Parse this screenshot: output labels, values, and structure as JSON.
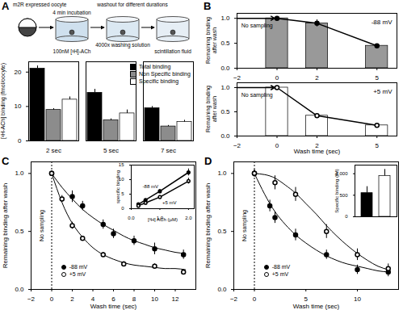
{
  "chart_data": [
    {
      "panel": "A",
      "type": "bar",
      "annotations": [
        "m2R expressed oocyte",
        "4 min incubation",
        "washout for different durations",
        "100nM [³H]-ACh",
        "4000x washing solution",
        "scintillation fluid"
      ],
      "ylabel": "[³H-ACh] binding (fmol/oocyte)",
      "categories": [
        "2 sec",
        "5 sec",
        "7 sec"
      ],
      "series": [
        {
          "name": "Total binding",
          "color": "#000000",
          "values": [
            21,
            14,
            9.5
          ],
          "errors": [
            0.8,
            1,
            0.5
          ]
        },
        {
          "name": "Non Specific binding",
          "color": "#8c8c8c",
          "values": [
            9,
            6,
            4.2
          ],
          "errors": [
            0.4,
            0.4,
            0.3
          ]
        },
        {
          "name": "Specific binding",
          "color": "#ffffff",
          "values": [
            12,
            8,
            5.5
          ],
          "errors": [
            0.8,
            1,
            0.5
          ]
        }
      ],
      "ylim": [
        0,
        23
      ],
      "yticks": [
        0,
        10,
        20
      ],
      "legend": "top-right"
    },
    {
      "panel": "B",
      "type": "bar",
      "title": "-88 mV",
      "annotations": [
        "No sampling"
      ],
      "ylabel": "Remaining binding after wash",
      "x": [
        0,
        2,
        5
      ],
      "values": [
        1,
        0.9,
        0.45
      ],
      "errors": [
        0.02,
        0.07,
        0.03
      ],
      "color": "#999999",
      "marker": "circle",
      "xlim": [
        -2,
        6
      ],
      "xticks": [
        -2,
        0,
        2,
        5
      ],
      "ylim": [
        0,
        1.1
      ],
      "yticks": [
        0,
        0.5,
        1
      ]
    },
    {
      "type": "bar",
      "title": "+5 mV",
      "annotations": [
        "No sampling"
      ],
      "xlabel": "Wash time (sec)",
      "ylabel": "Remaining binding after wash",
      "x": [
        0,
        2,
        5
      ],
      "values": [
        1,
        0.42,
        0.22
      ],
      "errors": [
        0.02,
        0.03,
        0.03
      ],
      "color": "#ffffff",
      "marker": "open circle",
      "xlim": [
        -2,
        6
      ],
      "xticks": [
        -2,
        0,
        2,
        5
      ],
      "ylim": [
        0,
        1.1
      ],
      "yticks": [
        0,
        0.5,
        1
      ]
    },
    {
      "panel": "C",
      "type": "scatter",
      "annotations": [
        "No sampling"
      ],
      "xlabel": "Wash time (sec)",
      "ylabel": "Remaining binding after wash",
      "series": [
        {
          "name": "-88 mV",
          "color": "#000000",
          "marker": "filled circle",
          "x": [
            0,
            2,
            3,
            5,
            6,
            8,
            10,
            12.8
          ],
          "values": [
            1,
            0.8,
            0.72,
            0.56,
            0.48,
            0.42,
            0.35,
            0.3
          ],
          "errors": [
            0.02,
            0.05,
            0.04,
            0.04,
            0.04,
            0.04,
            0.05,
            0.04
          ],
          "fit_x": [
            0,
            1,
            2,
            3,
            4,
            5,
            6,
            7,
            8,
            9,
            10,
            11,
            12,
            13
          ],
          "fit": [
            1,
            0.88,
            0.78,
            0.69,
            0.62,
            0.56,
            0.51,
            0.46,
            0.42,
            0.39,
            0.36,
            0.34,
            0.32,
            0.31
          ]
        },
        {
          "name": "+5 mV",
          "color": "#000000",
          "marker": "open circle",
          "x": [
            0,
            1,
            2,
            3,
            5,
            7,
            10,
            12.8
          ],
          "values": [
            1,
            0.78,
            0.55,
            0.44,
            0.3,
            0.22,
            0.2,
            0.15
          ],
          "errors": [
            0.02,
            0.03,
            0.03,
            0.02,
            0.02,
            0.02,
            0.02,
            0.02
          ],
          "fit_x": [
            0,
            1,
            2,
            3,
            4,
            5,
            6,
            7,
            8,
            9,
            10,
            11,
            12,
            13
          ],
          "fit": [
            1,
            0.75,
            0.57,
            0.45,
            0.36,
            0.3,
            0.26,
            0.23,
            0.21,
            0.2,
            0.19,
            0.18,
            0.18,
            0.17
          ]
        }
      ],
      "xlim": [
        -2,
        14
      ],
      "xticks": [
        -2,
        0,
        2,
        4,
        6,
        8,
        10,
        12
      ],
      "ylim": [
        0,
        1.1
      ],
      "yticks": [
        0,
        0.5,
        1
      ],
      "legend": "bottom-left"
    },
    {
      "type": "line",
      "xlabel": "[³H] ACh (µM)",
      "ylabel": "specific binding",
      "series": [
        {
          "name": "-88 mV",
          "color": "#000000",
          "marker": "filled circle",
          "x": [
            0.25,
            0.5,
            1,
            2
          ],
          "values": [
            1.5,
            3,
            6,
            12.5
          ],
          "errors": [
            0.3,
            0.4,
            0.6,
            1.2
          ]
        },
        {
          "name": "+5 mV",
          "color": "#000000",
          "marker": "open circle",
          "x": [
            0.25,
            0.5,
            1,
            2
          ],
          "values": [
            1,
            2,
            4,
            9.5
          ],
          "errors": [
            0.3,
            0.4,
            0.5,
            1
          ]
        }
      ],
      "xlim": [
        0,
        2.2
      ],
      "xticks": [
        0,
        1,
        2
      ],
      "ylim": [
        0,
        15
      ],
      "yticks": [
        0,
        5,
        10,
        15
      ]
    },
    {
      "panel": "D",
      "type": "scatter",
      "annotations": [
        "No sampling"
      ],
      "xlabel": "Wash time (sec)",
      "ylabel": "Remaining binding after wash",
      "series": [
        {
          "name": "-88 mV",
          "color": "#000000",
          "marker": "filled circle",
          "x": [
            0,
            1.5,
            2,
            4,
            7,
            10,
            13
          ],
          "values": [
            1,
            0.72,
            0.62,
            0.47,
            0.3,
            0.17,
            0.15
          ],
          "errors": [
            0.03,
            0.05,
            0.05,
            0.05,
            0.04,
            0.04,
            0.04
          ],
          "fit_x": [
            0,
            1,
            2,
            3,
            4,
            5,
            6,
            7,
            8,
            9,
            10,
            11,
            12,
            13
          ],
          "fit": [
            1,
            0.82,
            0.67,
            0.56,
            0.47,
            0.4,
            0.34,
            0.29,
            0.25,
            0.22,
            0.2,
            0.18,
            0.16,
            0.15
          ]
        },
        {
          "name": "+5 mV",
          "color": "#000000",
          "marker": "open circle",
          "x": [
            0,
            2,
            4,
            7,
            10,
            13
          ],
          "values": [
            1,
            0.92,
            0.82,
            0.5,
            0.3,
            0.18
          ],
          "errors": [
            0.03,
            0.06,
            0.06,
            0.06,
            0.05,
            0.04
          ],
          "fit_x": [
            0,
            1,
            2,
            3,
            4,
            5,
            6,
            7,
            8,
            9,
            10,
            11,
            12,
            13
          ],
          "fit": [
            1,
            0.99,
            0.96,
            0.9,
            0.83,
            0.74,
            0.65,
            0.55,
            0.46,
            0.38,
            0.31,
            0.25,
            0.2,
            0.17
          ]
        }
      ],
      "xlim": [
        -2,
        14
      ],
      "xticks": [
        -2,
        0,
        5,
        10
      ],
      "ylim": [
        0,
        1.1
      ],
      "yticks": [
        0,
        0.5,
        1
      ],
      "legend": "bottom-left"
    },
    {
      "type": "bar",
      "ylabel": "Specific binding (fM)",
      "categories": [
        null,
        null
      ],
      "values": [
        550,
        950
      ],
      "errors": [
        150,
        150
      ],
      "colors": [
        "#000000",
        "#ffffff"
      ],
      "ylim": [
        0,
        1200
      ],
      "yticks": [
        0,
        500,
        1000
      ]
    }
  ]
}
